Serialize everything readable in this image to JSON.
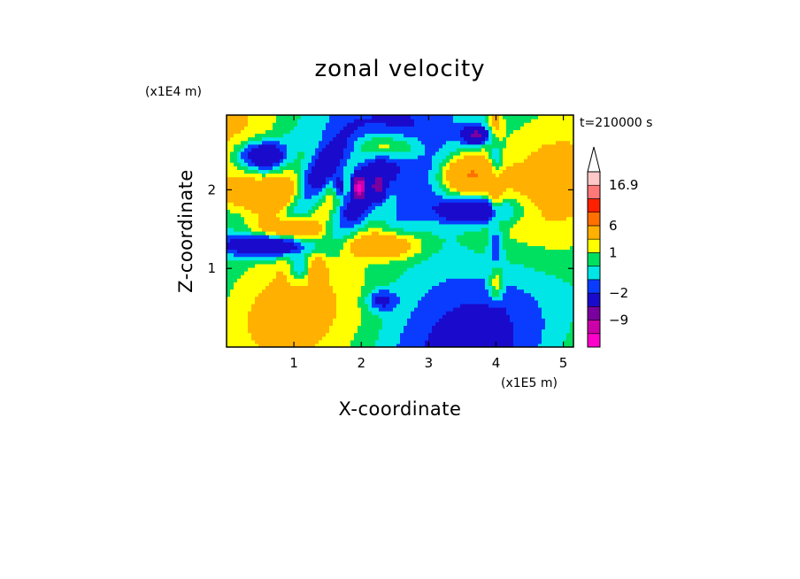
{
  "chart_data": {
    "type": "heatmap",
    "title": "zonal velocity",
    "xlabel": "X-coordinate",
    "ylabel": "Z-coordinate",
    "x_unit": "(x1E5 m)",
    "y_unit": "(x1E4 m)",
    "time_label": "t=210000 s",
    "xlim": [
      0,
      5.15
    ],
    "ylim": [
      0,
      2.95
    ],
    "x_ticks": [
      1,
      2,
      3,
      4,
      5
    ],
    "y_ticks": [
      1,
      2
    ],
    "x_tick_labels": [
      "1",
      "2",
      "3",
      "4",
      "5"
    ],
    "y_tick_labels": [
      "1",
      "2"
    ],
    "colorbar": {
      "levels": [
        -16,
        -12,
        -9,
        -6,
        -2,
        -1,
        0,
        1,
        2,
        6,
        9,
        12,
        16.9
      ],
      "colors": [
        "#ff00cc",
        "#cc00aa",
        "#7a00a0",
        "#1a0acc",
        "#0a3cff",
        "#00e6e6",
        "#00e060",
        "#ffff00",
        "#ffb000",
        "#ff7000",
        "#ff2000",
        "#ff7878",
        "#ffc8c8"
      ],
      "extend_max_color": "#ffffff",
      "labels": [
        "16.9",
        "6",
        "1",
        "−2",
        "−9"
      ],
      "label_values": [
        16.9,
        6,
        1,
        -2,
        -9
      ]
    },
    "grid": false
  }
}
